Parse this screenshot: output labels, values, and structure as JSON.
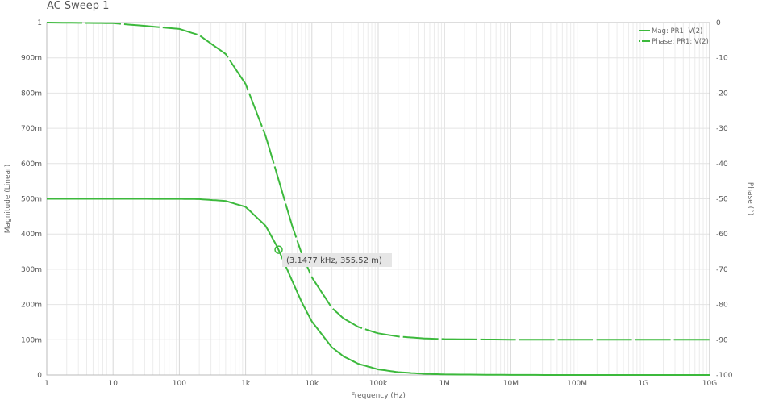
{
  "chart_data": {
    "type": "line",
    "title": "AC Sweep 1",
    "xlabel": "Frequency (Hz)",
    "ylabel": "Magnitude (Linear)",
    "y2label": "Phase (°)",
    "xscale": "log",
    "xlim": [
      1,
      10000000000
    ],
    "ylim": [
      0,
      1
    ],
    "y2lim": [
      -100,
      0
    ],
    "grid": true,
    "legend_position": "top-right",
    "x_ticks": [
      "1",
      "10",
      "100",
      "1k",
      "10k",
      "100k",
      "1M",
      "10M",
      "100M",
      "1G",
      "10G"
    ],
    "y_ticks": [
      "0",
      "100m",
      "200m",
      "300m",
      "400m",
      "500m",
      "600m",
      "700m",
      "800m",
      "900m",
      "1"
    ],
    "y2_ticks": [
      "-100",
      "-90",
      "-80",
      "-70",
      "-60",
      "-50",
      "-40",
      "-30",
      "-20",
      "-10",
      "0"
    ],
    "x": [
      1,
      10,
      100,
      200,
      500,
      1000,
      2000,
      3000,
      5000,
      7000,
      10000,
      20000,
      30000,
      50000,
      100000,
      200000,
      500000,
      1000000,
      10000000,
      100000000,
      1000000000,
      10000000000
    ],
    "series": [
      {
        "name": "Mag: PR1: V(2)",
        "axis": "left",
        "style": "solid",
        "color": "#3cb93c",
        "values": [
          0.5,
          0.5,
          0.4998,
          0.499,
          0.4939,
          0.477,
          0.4234,
          0.3639,
          0.2685,
          0.207,
          0.1517,
          0.0786,
          0.0528,
          0.0318,
          0.0159,
          0.008,
          0.0032,
          0.0016,
          0.0002,
          0,
          0,
          0
        ]
      },
      {
        "name": "Phase: PR1: V(2)",
        "axis": "right",
        "style": "dashed",
        "color": "#3cb93c",
        "values": [
          0,
          -0.18,
          -1.8,
          -3.59,
          -8.93,
          -17.44,
          -32.14,
          -43.3,
          -57.5,
          -65.55,
          -72.3,
          -80.96,
          -83.94,
          -86.36,
          -88.18,
          -89.09,
          -89.64,
          -89.82,
          -89.98,
          -90,
          -90,
          -90
        ]
      }
    ],
    "annotation": {
      "x": 3147.7,
      "y": 0.35552,
      "label": "(3.1477 kHz, 355.52 m)"
    }
  }
}
